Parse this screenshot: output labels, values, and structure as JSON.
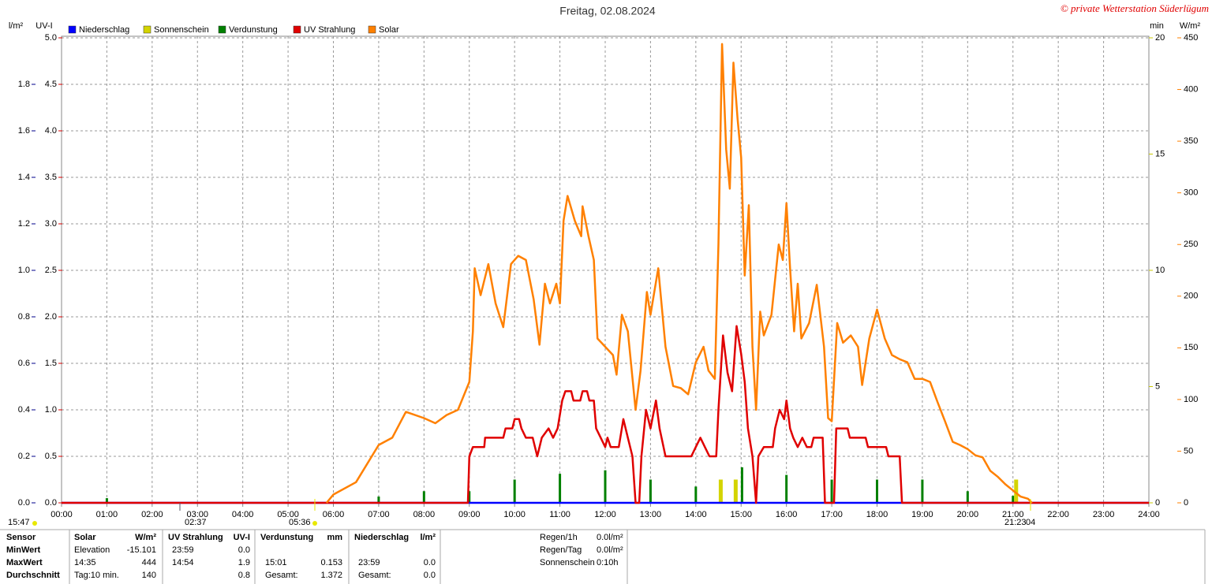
{
  "chart_data": {
    "type": "line",
    "title": "Freitag, 02.08.2024",
    "copyright": "© private Wetterstation Süderlügum",
    "xlim": [
      0,
      24
    ],
    "xticks": [
      {
        "value": 0,
        "label": "00:00"
      },
      {
        "value": 1,
        "label": "01:00"
      },
      {
        "value": 2,
        "label": "02:00"
      },
      {
        "value": 3,
        "label": "03:00"
      },
      {
        "value": 4,
        "label": "04:00"
      },
      {
        "value": 5,
        "label": "05:00"
      },
      {
        "value": 6,
        "label": "06:00"
      },
      {
        "value": 7,
        "label": "07:00"
      },
      {
        "value": 8,
        "label": "08:00"
      },
      {
        "value": 9,
        "label": "09:00"
      },
      {
        "value": 10,
        "label": "10:00"
      },
      {
        "value": 11,
        "label": "11:00"
      },
      {
        "value": 12,
        "label": "12:00"
      },
      {
        "value": 13,
        "label": "13:00"
      },
      {
        "value": 14,
        "label": "14:00"
      },
      {
        "value": 15,
        "label": "15:00"
      },
      {
        "value": 16,
        "label": "16:00"
      },
      {
        "value": 17,
        "label": "17:00"
      },
      {
        "value": 18,
        "label": "18:00"
      },
      {
        "value": 19,
        "label": "19:00"
      },
      {
        "value": 20,
        "label": "20:00"
      },
      {
        "value": 21,
        "label": "21:00"
      },
      {
        "value": 22,
        "label": "22:00"
      },
      {
        "value": 23,
        "label": "23:00"
      },
      {
        "value": 24,
        "label": "24:00"
      }
    ],
    "axes": [
      {
        "label": "l/m²",
        "color": "#00008b",
        "lim": [
          0,
          2
        ],
        "ticks": [
          {
            "value": 0,
            "label": "0.0"
          },
          0.2,
          0.4,
          0.6,
          0.8,
          {
            "value": 1,
            "label": "1.0"
          },
          1.2,
          1.4,
          1.6,
          1.8
        ]
      },
      {
        "label": "UV-I",
        "color": "#e00000",
        "lim": [
          0,
          5
        ],
        "grid": true,
        "ticks": [
          {
            "value": 0,
            "label": "0.0"
          },
          0.5,
          {
            "value": 1,
            "label": "1.0"
          },
          1.5,
          {
            "value": 2,
            "label": "2.0"
          },
          2.5,
          {
            "value": 3,
            "label": "3.0"
          },
          3.5,
          {
            "value": 4,
            "label": "4.0"
          },
          4.5,
          {
            "value": 5,
            "label": "5.0"
          }
        ]
      },
      {
        "label": "min",
        "color": "#c8c800",
        "lim": [
          0,
          20
        ],
        "ticks": [
          0,
          5,
          10,
          15,
          20
        ]
      },
      {
        "label": "W/m²",
        "color": "#ff8000",
        "lim": [
          0,
          450
        ],
        "ticks": [
          0,
          50,
          100,
          150,
          200,
          250,
          300,
          350,
          400,
          450
        ]
      }
    ],
    "series": [
      {
        "name": "Niederschlag",
        "color": "#0000ff",
        "kind": "line",
        "axis": 0,
        "x": [
          0,
          24
        ],
        "values": [
          0,
          0
        ]
      },
      {
        "name": "Sonnenschein",
        "color": "#d4d400",
        "kind": "bar",
        "axis": 2,
        "x": [
          14.55,
          14.88,
          21.07
        ],
        "values": [
          1,
          1,
          1
        ]
      },
      {
        "name": "Verdunstung",
        "color": "#008000",
        "kind": "bar",
        "axis": 0,
        "x": [
          1,
          7,
          8,
          9,
          10,
          11,
          12,
          13,
          14,
          15.02,
          16,
          17,
          18,
          19,
          20,
          21
        ],
        "values": [
          0.02,
          0.027,
          0.05,
          0.05,
          0.1,
          0.125,
          0.14,
          0.1,
          0.07,
          0.153,
          0.12,
          0.1,
          0.1,
          0.1,
          0.05,
          0.03
        ]
      },
      {
        "name": "UV Strahlung",
        "color": "#e00000",
        "kind": "line",
        "axis": 1,
        "x": [
          0,
          8.97,
          9.0,
          9.08,
          9.33,
          9.35,
          9.75,
          9.8,
          9.95,
          10.0,
          10.1,
          10.15,
          10.25,
          10.4,
          10.5,
          10.6,
          10.75,
          10.85,
          10.95,
          11.05,
          11.12,
          11.25,
          11.3,
          11.45,
          11.5,
          11.6,
          11.65,
          11.75,
          11.8,
          11.9,
          12.0,
          12.05,
          12.12,
          12.3,
          12.4,
          12.5,
          12.6,
          12.67,
          12.75,
          12.8,
          12.9,
          13.0,
          13.12,
          13.2,
          13.33,
          13.9,
          14.0,
          14.1,
          14.2,
          14.3,
          14.45,
          14.5,
          14.6,
          14.7,
          14.8,
          14.9,
          15.0,
          15.08,
          15.15,
          15.25,
          15.33,
          15.38,
          15.5,
          15.7,
          15.75,
          15.85,
          15.95,
          16.0,
          16.08,
          16.15,
          16.25,
          16.35,
          16.45,
          16.55,
          16.6,
          16.8,
          16.85,
          17.05,
          17.1,
          17.35,
          17.4,
          17.75,
          17.8,
          18.2,
          18.25,
          18.5,
          18.55,
          24
        ],
        "values": [
          0,
          0,
          0.5,
          0.6,
          0.6,
          0.7,
          0.7,
          0.8,
          0.8,
          0.9,
          0.9,
          0.8,
          0.7,
          0.7,
          0.5,
          0.7,
          0.8,
          0.7,
          0.8,
          1.1,
          1.2,
          1.2,
          1.1,
          1.1,
          1.2,
          1.2,
          1.1,
          1.1,
          0.8,
          0.7,
          0.6,
          0.7,
          0.6,
          0.6,
          0.9,
          0.7,
          0.5,
          0,
          0,
          0.5,
          1.0,
          0.8,
          1.1,
          0.8,
          0.5,
          0.5,
          0.6,
          0.7,
          0.6,
          0.5,
          0.5,
          1.0,
          1.8,
          1.4,
          1.2,
          1.9,
          1.6,
          1.3,
          0.8,
          0.5,
          0,
          0.5,
          0.6,
          0.6,
          0.8,
          1.0,
          0.9,
          1.1,
          0.8,
          0.7,
          0.6,
          0.7,
          0.6,
          0.6,
          0.7,
          0.7,
          0,
          0,
          0.8,
          0.8,
          0.7,
          0.7,
          0.6,
          0.6,
          0.5,
          0.5,
          0,
          0
        ]
      },
      {
        "name": "Solar",
        "color": "#ff8000",
        "kind": "line",
        "axis": 3,
        "x": [
          5.85,
          6.0,
          6.5,
          7.0,
          7.3,
          7.6,
          8.0,
          8.25,
          8.5,
          8.75,
          9.0,
          9.08,
          9.12,
          9.25,
          9.42,
          9.58,
          9.75,
          9.92,
          10.08,
          10.25,
          10.42,
          10.55,
          10.67,
          10.78,
          10.92,
          11.0,
          11.08,
          11.17,
          11.33,
          11.47,
          11.5,
          11.63,
          11.75,
          11.83,
          12.0,
          12.17,
          12.25,
          12.37,
          12.5,
          12.67,
          12.78,
          12.92,
          13.0,
          13.17,
          13.33,
          13.5,
          13.67,
          13.83,
          14.0,
          14.17,
          14.28,
          14.42,
          14.5,
          14.58,
          14.67,
          14.75,
          14.83,
          14.92,
          15.0,
          15.08,
          15.17,
          15.25,
          15.33,
          15.42,
          15.5,
          15.67,
          15.83,
          15.92,
          16.0,
          16.08,
          16.17,
          16.25,
          16.33,
          16.5,
          16.67,
          16.83,
          16.92,
          17.0,
          17.12,
          17.25,
          17.42,
          17.58,
          17.67,
          17.83,
          18.0,
          18.17,
          18.33,
          18.5,
          18.67,
          18.83,
          19.0,
          19.17,
          19.33,
          19.5,
          19.67,
          19.83,
          20.0,
          20.17,
          20.33,
          20.5,
          20.67,
          20.83,
          21.0,
          21.17,
          21.33,
          21.42
        ],
        "values": [
          0,
          8,
          20,
          56,
          63,
          88,
          82,
          77,
          85,
          90,
          117,
          166,
          227,
          201,
          231,
          193,
          170,
          231,
          239,
          235,
          197,
          153,
          212,
          193,
          212,
          193,
          273,
          297,
          273,
          258,
          287,
          258,
          235,
          159,
          151,
          143,
          124,
          182,
          166,
          90,
          128,
          204,
          182,
          227,
          151,
          113,
          111,
          105,
          136,
          151,
          128,
          120,
          250,
          444,
          342,
          304,
          426,
          372,
          334,
          220,
          288,
          151,
          90,
          185,
          162,
          182,
          250,
          235,
          290,
          227,
          166,
          212,
          159,
          174,
          211,
          151,
          82,
          79,
          174,
          155,
          162,
          151,
          114,
          159,
          187,
          159,
          143,
          139,
          136,
          120,
          120,
          117,
          98,
          79,
          59,
          56,
          52,
          46,
          44,
          31,
          25,
          18,
          12,
          6,
          4,
          0
        ]
      }
    ],
    "annotations": [
      "15:47",
      "02:37",
      "05:36",
      "21:23",
      "04"
    ]
  },
  "table": {
    "header": [
      "Sensor",
      "Solar",
      "W/m²",
      "UV Strahlung",
      "UV-I",
      "Verdunstung",
      "mm",
      "Niederschlag",
      "l/m²"
    ],
    "rows": [
      [
        "MinWert",
        "Elevation",
        "-15.101",
        "23:59",
        "0.0",
        null,
        null,
        null,
        null
      ],
      [
        "MaxWert",
        "14:35",
        "444",
        "14:54",
        "1.9",
        "15:01",
        "0.153",
        "23:59",
        "0.0"
      ],
      [
        "Durchschnitt",
        "Tag:10 min.",
        "140",
        null,
        "0.8",
        "Gesamt:",
        "1.372",
        "Gesamt:",
        "0.0"
      ]
    ],
    "summary": [
      [
        "Regen/1h",
        "0.0l/m²"
      ],
      [
        "Regen/Tag",
        "0.0l/m²"
      ],
      [
        "Sonnenschein",
        "0:10h"
      ]
    ]
  }
}
